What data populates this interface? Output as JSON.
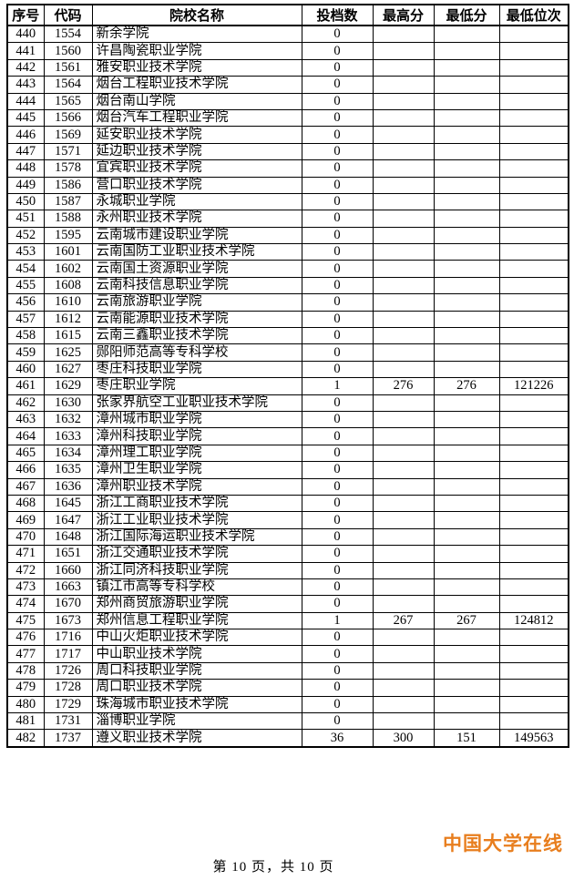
{
  "table": {
    "headers": [
      "序号",
      "代码",
      "院校名称",
      "投档数",
      "最高分",
      "最低分",
      "最低位次"
    ],
    "rows": [
      [
        "440",
        "1554",
        "新余学院",
        "0",
        "",
        "",
        ""
      ],
      [
        "441",
        "1560",
        "许昌陶瓷职业学院",
        "0",
        "",
        "",
        ""
      ],
      [
        "442",
        "1561",
        "雅安职业技术学院",
        "0",
        "",
        "",
        ""
      ],
      [
        "443",
        "1564",
        "烟台工程职业技术学院",
        "0",
        "",
        "",
        ""
      ],
      [
        "444",
        "1565",
        "烟台南山学院",
        "0",
        "",
        "",
        ""
      ],
      [
        "445",
        "1566",
        "烟台汽车工程职业学院",
        "0",
        "",
        "",
        ""
      ],
      [
        "446",
        "1569",
        "延安职业技术学院",
        "0",
        "",
        "",
        ""
      ],
      [
        "447",
        "1571",
        "延边职业技术学院",
        "0",
        "",
        "",
        ""
      ],
      [
        "448",
        "1578",
        "宜宾职业技术学院",
        "0",
        "",
        "",
        ""
      ],
      [
        "449",
        "1586",
        "营口职业技术学院",
        "0",
        "",
        "",
        ""
      ],
      [
        "450",
        "1587",
        "永城职业学院",
        "0",
        "",
        "",
        ""
      ],
      [
        "451",
        "1588",
        "永州职业技术学院",
        "0",
        "",
        "",
        ""
      ],
      [
        "452",
        "1595",
        "云南城市建设职业学院",
        "0",
        "",
        "",
        ""
      ],
      [
        "453",
        "1601",
        "云南国防工业职业技术学院",
        "0",
        "",
        "",
        ""
      ],
      [
        "454",
        "1602",
        "云南国土资源职业学院",
        "0",
        "",
        "",
        ""
      ],
      [
        "455",
        "1608",
        "云南科技信息职业学院",
        "0",
        "",
        "",
        ""
      ],
      [
        "456",
        "1610",
        "云南旅游职业学院",
        "0",
        "",
        "",
        ""
      ],
      [
        "457",
        "1612",
        "云南能源职业技术学院",
        "0",
        "",
        "",
        ""
      ],
      [
        "458",
        "1615",
        "云南三鑫职业技术学院",
        "0",
        "",
        "",
        ""
      ],
      [
        "459",
        "1625",
        "郧阳师范高等专科学校",
        "0",
        "",
        "",
        ""
      ],
      [
        "460",
        "1627",
        "枣庄科技职业学院",
        "0",
        "",
        "",
        ""
      ],
      [
        "461",
        "1629",
        "枣庄职业学院",
        "1",
        "276",
        "276",
        "121226"
      ],
      [
        "462",
        "1630",
        "张家界航空工业职业技术学院",
        "0",
        "",
        "",
        ""
      ],
      [
        "463",
        "1632",
        "漳州城市职业学院",
        "0",
        "",
        "",
        ""
      ],
      [
        "464",
        "1633",
        "漳州科技职业学院",
        "0",
        "",
        "",
        ""
      ],
      [
        "465",
        "1634",
        "漳州理工职业学院",
        "0",
        "",
        "",
        ""
      ],
      [
        "466",
        "1635",
        "漳州卫生职业学院",
        "0",
        "",
        "",
        ""
      ],
      [
        "467",
        "1636",
        "漳州职业技术学院",
        "0",
        "",
        "",
        ""
      ],
      [
        "468",
        "1645",
        "浙江工商职业技术学院",
        "0",
        "",
        "",
        ""
      ],
      [
        "469",
        "1647",
        "浙江工业职业技术学院",
        "0",
        "",
        "",
        ""
      ],
      [
        "470",
        "1648",
        "浙江国际海运职业技术学院",
        "0",
        "",
        "",
        ""
      ],
      [
        "471",
        "1651",
        "浙江交通职业技术学院",
        "0",
        "",
        "",
        ""
      ],
      [
        "472",
        "1660",
        "浙江同济科技职业学院",
        "0",
        "",
        "",
        ""
      ],
      [
        "473",
        "1663",
        "镇江市高等专科学校",
        "0",
        "",
        "",
        ""
      ],
      [
        "474",
        "1670",
        "郑州商贸旅游职业学院",
        "0",
        "",
        "",
        ""
      ],
      [
        "475",
        "1673",
        "郑州信息工程职业学院",
        "1",
        "267",
        "267",
        "124812"
      ],
      [
        "476",
        "1716",
        "中山火炬职业技术学院",
        "0",
        "",
        "",
        ""
      ],
      [
        "477",
        "1717",
        "中山职业技术学院",
        "0",
        "",
        "",
        ""
      ],
      [
        "478",
        "1726",
        "周口科技职业学院",
        "0",
        "",
        "",
        ""
      ],
      [
        "479",
        "1728",
        "周口职业技术学院",
        "0",
        "",
        "",
        ""
      ],
      [
        "480",
        "1729",
        "珠海城市职业技术学院",
        "0",
        "",
        "",
        ""
      ],
      [
        "481",
        "1731",
        "淄博职业学院",
        "0",
        "",
        "",
        ""
      ],
      [
        "482",
        "1737",
        "遵义职业技术学院",
        "36",
        "300",
        "151",
        "149563"
      ]
    ]
  },
  "footer": {
    "text": "第 10 页，共 10 页"
  },
  "watermark": {
    "text": "中国大学在线",
    "color": "#e87e1e"
  }
}
